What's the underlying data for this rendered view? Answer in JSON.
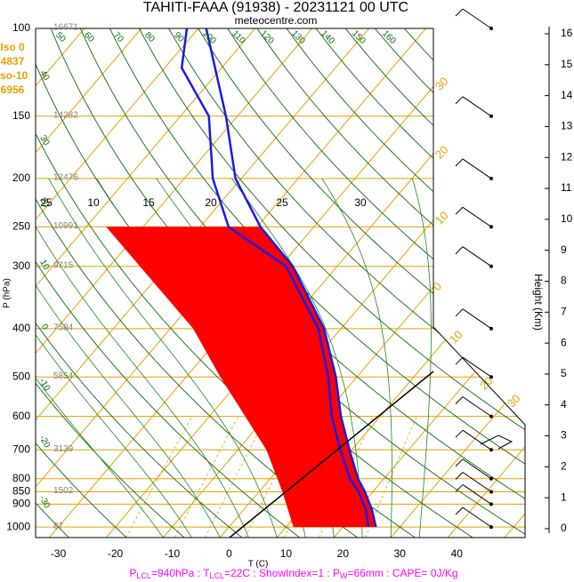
{
  "header": {
    "title": "TAHITI-FAAA (91938) - 20231121 00 UTC",
    "subtitle": "meteocentre.com"
  },
  "info": [
    "Iso 0",
    "4837",
    "Iso-10",
    "6956"
  ],
  "footer": [
    "P",
    "LCL",
    "=940hPa : T",
    "LCL",
    "=22C : ShowIndex=1 : P",
    "W",
    "=66mm : CAPE= 0J/Kg"
  ],
  "chart_data": {
    "type": "skewt",
    "ylabel": "P (hPa)",
    "xlabel": "T (C)",
    "y2label": "Height (Km)",
    "ylim": [
      1050,
      100
    ],
    "yticks": [
      100,
      150,
      200,
      250,
      300,
      400,
      500,
      600,
      700,
      800,
      850,
      900,
      1000
    ],
    "xlim": [
      -34,
      52
    ],
    "xticks": [
      -30,
      -20,
      -10,
      0,
      10,
      20,
      30,
      40
    ],
    "y2lim": [
      0,
      16
    ],
    "y2ticks": [
      0,
      1,
      2,
      3,
      4,
      5,
      6,
      7,
      8,
      9,
      10,
      11,
      12,
      13,
      14,
      15,
      16
    ],
    "height_levels": [
      100,
      150,
      200,
      250,
      300,
      400,
      500,
      700,
      850,
      1000
    ],
    "height_labels": [
      16671,
      14282,
      12476,
      10991,
      9715,
      7584,
      5854,
      3139,
      1502,
      87
    ],
    "dry_adiabat_labels": [
      50,
      60,
      70,
      80,
      90,
      100,
      110,
      120,
      130,
      140,
      150,
      160
    ],
    "dry_adiabat_left_labels": [
      40,
      30,
      20,
      10,
      0,
      -10,
      -20,
      -30
    ],
    "moist_adiabat_labels": [
      25,
      10,
      15,
      20,
      25,
      30
    ],
    "isotherm_labels": [
      30,
      20,
      10,
      0,
      10,
      20,
      30
    ],
    "temperature": {
      "color": "#1a1ae6",
      "pressure": [
        1000,
        925,
        850,
        800,
        700,
        600,
        500,
        400,
        300,
        250,
        200,
        150,
        100
      ],
      "values": [
        25.8,
        22.6,
        18.6,
        15.4,
        9.6,
        3.1,
        -3.7,
        -13,
        -27.8,
        -39.4,
        -51,
        -62,
        -78.6
      ]
    },
    "dewpoint": {
      "color": "#1a1ae6",
      "pressure": [
        1000,
        925,
        850,
        800,
        700,
        600,
        500,
        400,
        300,
        250,
        200,
        150,
        120,
        100
      ],
      "values": [
        24.5,
        21.5,
        17.5,
        14,
        8,
        1.5,
        -5,
        -14,
        -29,
        -45,
        -55,
        -65,
        -77,
        -82
      ]
    },
    "shaded_area": {
      "color": "#ff0000",
      "pressure": [
        250,
        400,
        500,
        700,
        850,
        1000
      ],
      "values": [
        -66.5,
        -36,
        -24,
        -5,
        4.1,
        11.3
      ]
    }
  }
}
